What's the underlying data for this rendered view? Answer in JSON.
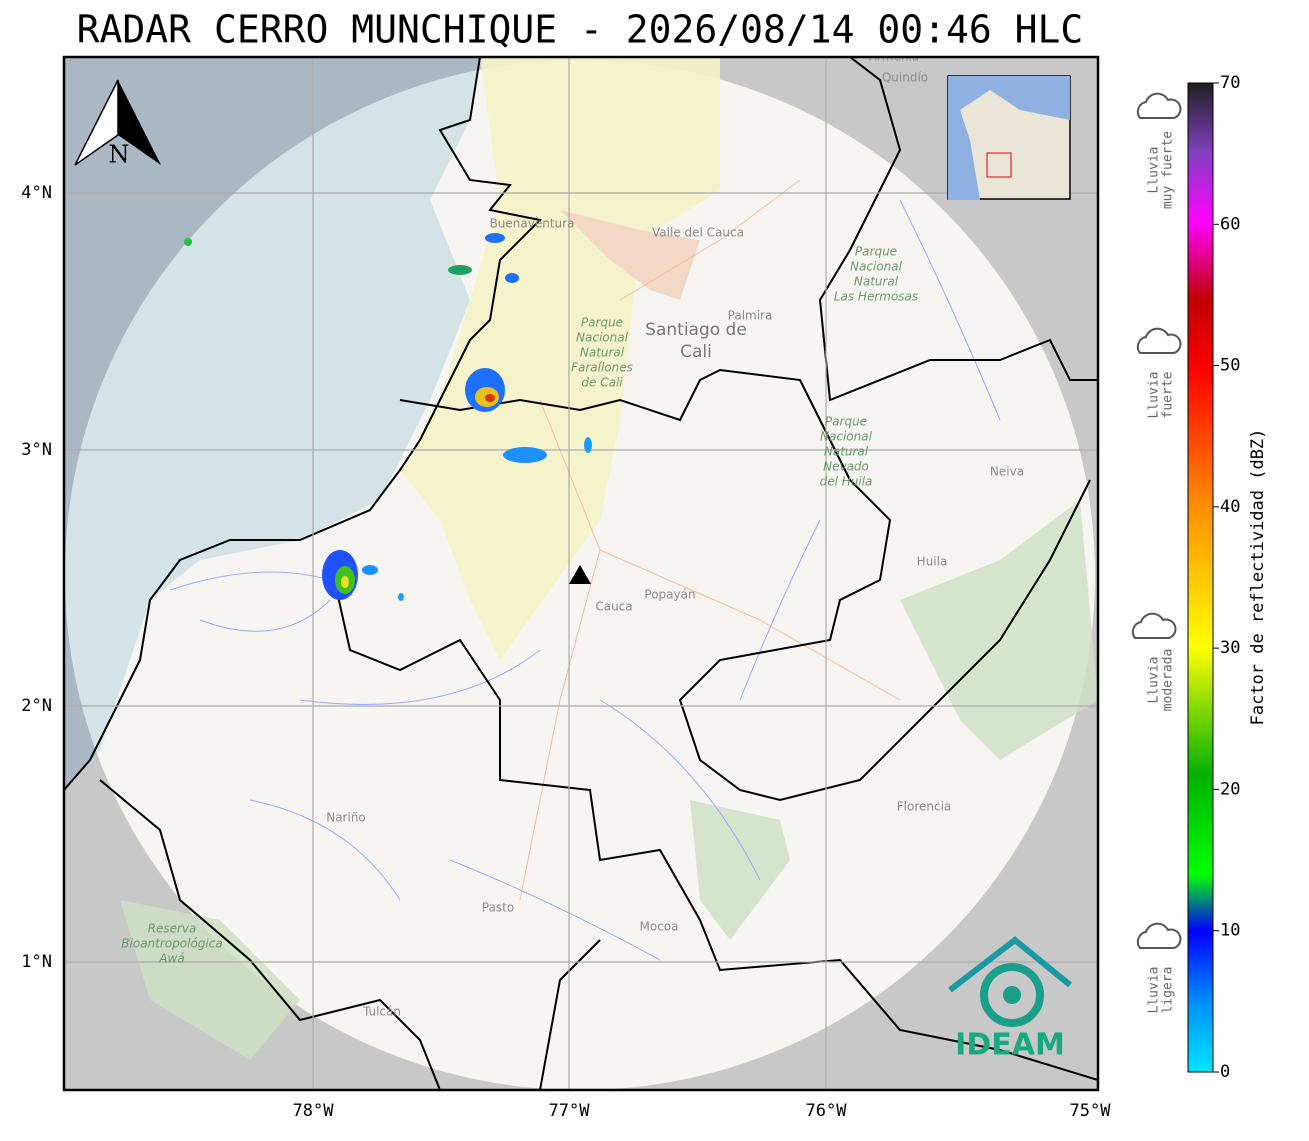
{
  "title": "RADAR CERRO MUNCHIQUE - 2026/08/14 00:46 HLC",
  "north": "N",
  "map": {
    "lat_ticks": [
      "4°N",
      "3°N",
      "2°N",
      "1°N"
    ],
    "lon_ticks": [
      "78°W",
      "77°W",
      "76°W",
      "75°W"
    ],
    "places": [
      [
        "Buenaventura"
      ],
      [
        "Valle del Cauca"
      ],
      [
        "Palmira"
      ],
      [
        "Santiago de",
        "Cali"
      ],
      [
        "Parque",
        "Nacional",
        "Natural",
        "Farallones",
        "de Cali"
      ],
      [
        "Parque",
        "Nacional",
        "Natural",
        "Las Hermosas"
      ],
      [
        "Parque",
        "Nacional",
        "Natural",
        "Nevado",
        "del Huila"
      ],
      [
        "Neiva"
      ],
      [
        "Huila"
      ],
      [
        "Popayán"
      ],
      [
        "Cauca"
      ],
      [
        "Nariño"
      ],
      [
        "Pasto"
      ],
      [
        "Mocoa"
      ],
      [
        "Florencia"
      ],
      [
        "Reserva",
        "Bioantropológica",
        "Awá"
      ],
      [
        "Tulcán"
      ],
      [
        "Armenia"
      ],
      [
        "Quindío"
      ]
    ]
  },
  "colorbar": {
    "label": "Factor de reflectividad (dBZ)",
    "range": [
      0,
      70
    ],
    "ticks": [
      0,
      10,
      20,
      30,
      40,
      50,
      60,
      70
    ]
  },
  "legend": [
    [
      "Lluvia",
      "muy fuerte"
    ],
    [
      "Lluvia",
      "fuerte"
    ],
    [
      "Lluvia",
      "moderada"
    ],
    [
      "Lluvia",
      "ligera"
    ]
  ],
  "logo": "IDEAM"
}
